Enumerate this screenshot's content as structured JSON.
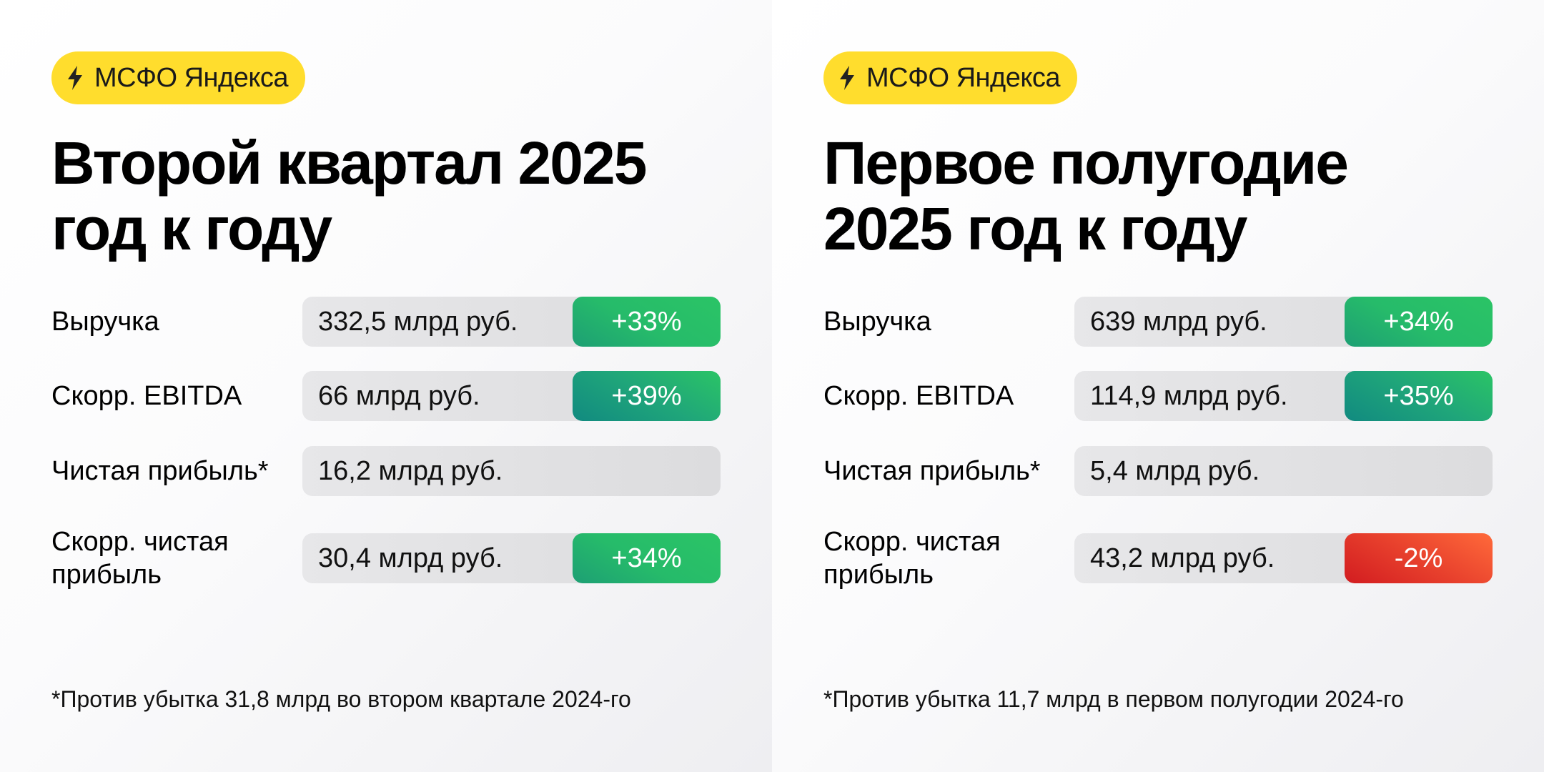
{
  "colors": {
    "badge": "#FFDD2D",
    "green": "#2BC466",
    "teal": "#118A80",
    "red": "#D21C20",
    "red_light": "#FF6A3A",
    "box": "#E3E3E5"
  },
  "panels": [
    {
      "badge": "МСФО Яндекса",
      "title": "Второй квартал 2025\nгод к году",
      "rows": [
        {
          "label": "Выручка",
          "value": "332,5 млрд руб.",
          "change": "+33%"
        },
        {
          "label": "Скорр. EBITDA",
          "value": "66 млрд руб.",
          "change": "+39%"
        },
        {
          "label": "Чистая прибыль*",
          "value": "16,2 млрд руб."
        },
        {
          "label": "Скорр. чистая\nприбыль",
          "value": "30,4 млрд руб.",
          "change": "+34%"
        }
      ],
      "footnote": "*Против убытка 31,8 млрд во втором квартале 2024-го"
    },
    {
      "badge": "МСФО Яндекса",
      "title": "Первое полугодие\n2025 год к году",
      "rows": [
        {
          "label": "Выручка",
          "value": "639 млрд руб.",
          "change": "+34%"
        },
        {
          "label": "Скорр. EBITDA",
          "value": "114,9 млрд руб.",
          "change": "+35%"
        },
        {
          "label": "Чистая прибыль*",
          "value": "5,4 млрд руб."
        },
        {
          "label": "Скорр. чистая\nприбыль",
          "value": "43,2 млрд руб.",
          "change": "-2%"
        }
      ],
      "footnote": "*Против убытка 11,7 млрд в первом полугодии 2024-го"
    }
  ]
}
